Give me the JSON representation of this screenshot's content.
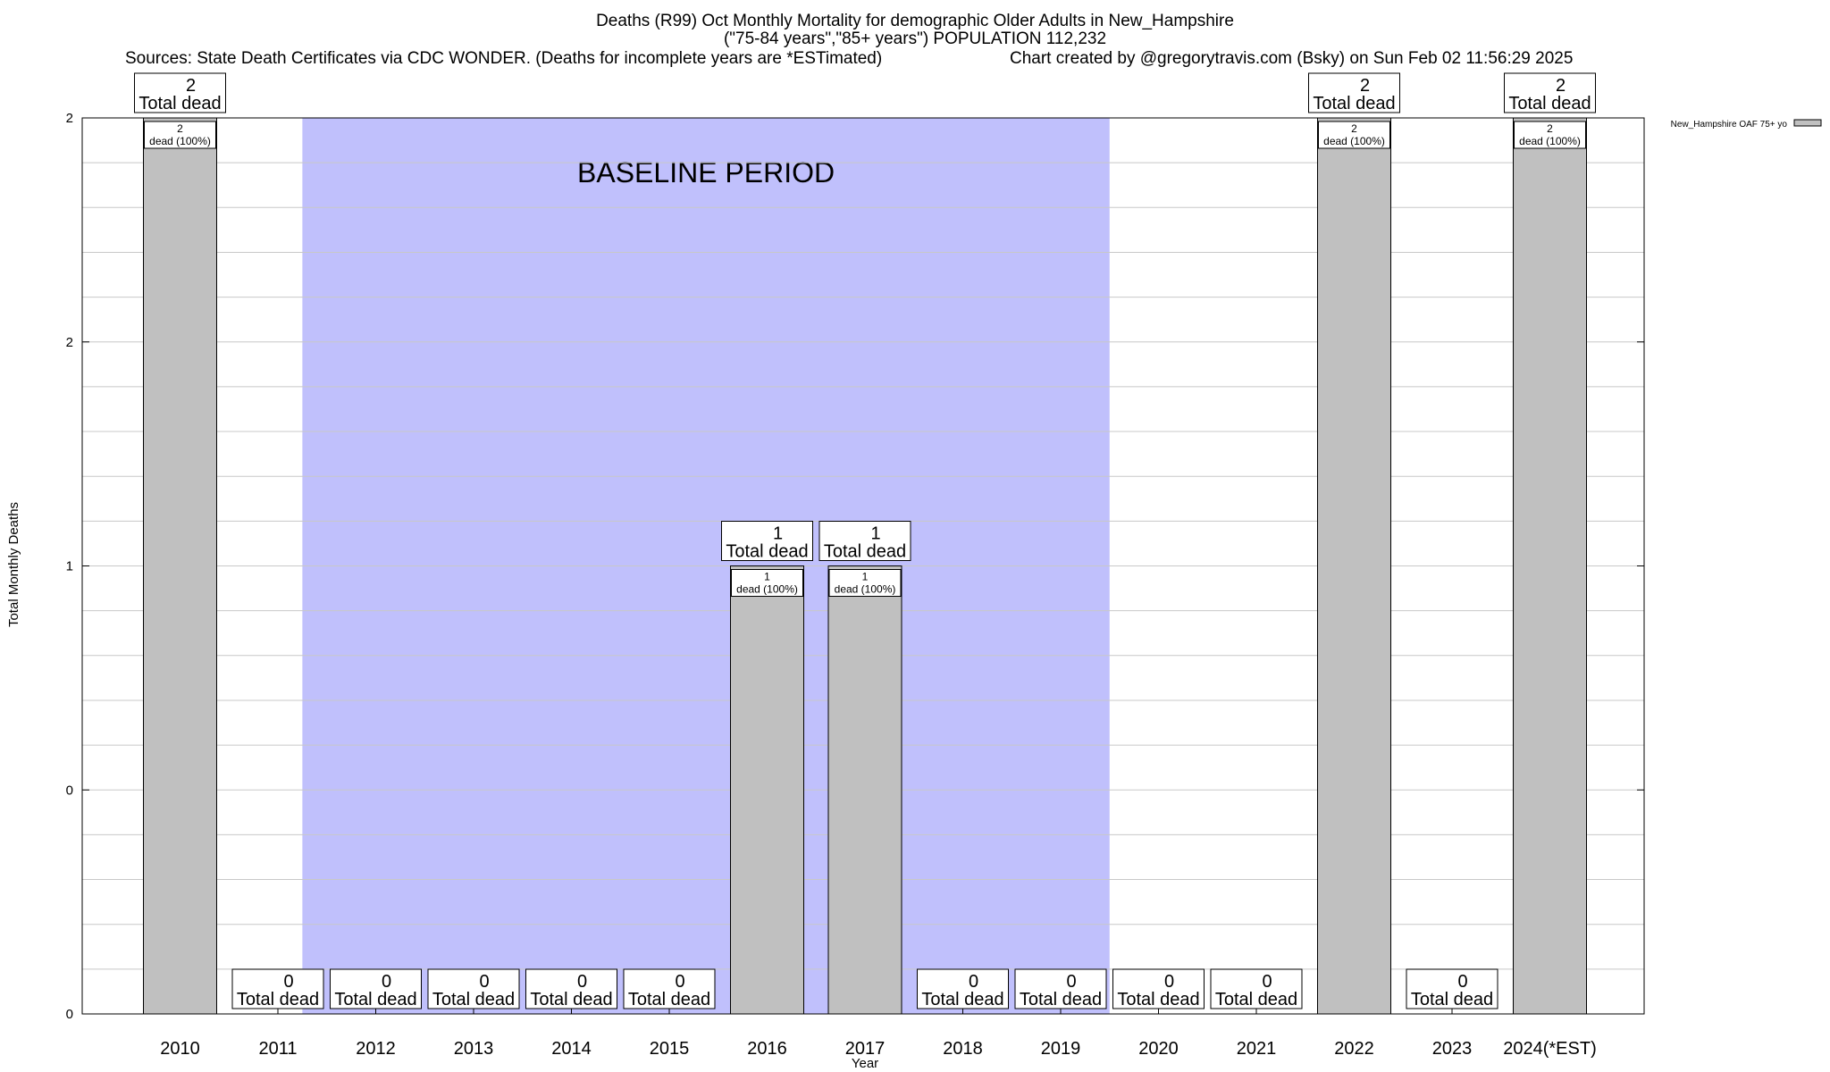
{
  "chart_data": {
    "type": "bar",
    "title": "Deaths (R99) Oct Monthly Mortality for demographic Older Adults in New_Hampshire",
    "subtitle": "(\"75-84 years\",\"85+ years\") POPULATION 112,232",
    "sources": "Sources: State Death Certificates via CDC WONDER. (Deaths for incomplete years are *ESTimated)",
    "credit": "Chart created by @gregorytravis.com (Bsky) on Sun Feb 02 11:56:29 2025",
    "xlabel": "Year",
    "ylabel": "Total Monthly Deaths",
    "ylim": [
      0,
      2
    ],
    "yticks": [
      {
        "value": 0,
        "label": "0"
      },
      {
        "value": 0.5,
        "label": "0"
      },
      {
        "value": 1,
        "label": "1"
      },
      {
        "value": 1.5,
        "label": "2"
      },
      {
        "value": 2,
        "label": "2"
      }
    ],
    "categories": [
      "2010",
      "2011",
      "2012",
      "2013",
      "2014",
      "2015",
      "2016",
      "2017",
      "2018",
      "2019",
      "2020",
      "2021",
      "2022",
      "2023",
      "2024(*EST)"
    ],
    "series": [
      {
        "name": "New_Hampshire OAF 75+ yo",
        "color": "#c0c0c0",
        "values": [
          2,
          0,
          0,
          0,
          0,
          0,
          1,
          1,
          0,
          0,
          0,
          0,
          2,
          0,
          2
        ]
      }
    ],
    "total_labels": [
      "2",
      "0",
      "0",
      "0",
      "0",
      "0",
      "1",
      "1",
      "0",
      "0",
      "0",
      "0",
      "2",
      "0",
      "2"
    ],
    "total_caption": "Total dead",
    "bar_labels": [
      "2",
      "",
      "",
      "",
      "",
      "",
      "1",
      "1",
      "",
      "",
      "",
      "",
      "2",
      "",
      "2"
    ],
    "bar_caption": "dead (100%)",
    "baseline": {
      "label": "BASELINE PERIOD",
      "start": "2012",
      "end": "2019",
      "color": "#c0c0fc"
    },
    "legend_position": "top-right",
    "grid": true
  }
}
